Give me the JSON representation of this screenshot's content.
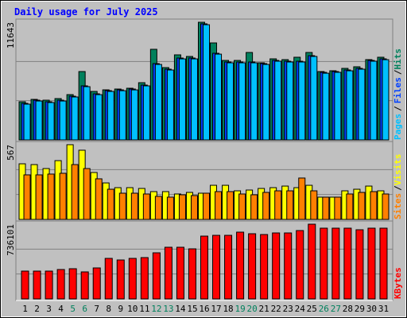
{
  "title": "Daily usage for July 2025",
  "categories": [
    "1",
    "2",
    "3",
    "4",
    "5",
    "6",
    "7",
    "8",
    "9",
    "10",
    "11",
    "12",
    "13",
    "14",
    "15",
    "16",
    "17",
    "18",
    "19",
    "20",
    "21",
    "22",
    "23",
    "24",
    "25",
    "26",
    "27",
    "28",
    "29",
    "30",
    "31"
  ],
  "category_colors": [
    "#000000",
    "#000000",
    "#000000",
    "#000000",
    "#00805c",
    "#00805c",
    "#000000",
    "#000000",
    "#000000",
    "#000000",
    "#000000",
    "#00805c",
    "#00805c",
    "#000000",
    "#000000",
    "#000000",
    "#000000",
    "#000000",
    "#00805c",
    "#00805c",
    "#000000",
    "#000000",
    "#000000",
    "#000000",
    "#000000",
    "#00805c",
    "#00805c",
    "#000000",
    "#000000",
    "#000000",
    "#000000"
  ],
  "chart_data": [
    {
      "type": "bar",
      "separator": "/",
      "ylim": [
        0,
        11643
      ],
      "yticks": [
        11643
      ],
      "series": [
        {
          "name": "Hits",
          "color": "#00805c",
          "values": [
            3776,
            4012,
            3933,
            4091,
            4484,
            6766,
            4799,
            4956,
            5035,
            5114,
            5664,
            8968,
            7159,
            8418,
            8260,
            11643,
            9598,
            7867,
            7867,
            8654,
            7631,
            8024,
            7946,
            8182,
            8654,
            6766,
            6844,
            7080,
            7238,
            7946,
            8182
          ]
        },
        {
          "name": "Files",
          "color": "#0040ff",
          "values": [
            3619,
            3933,
            3776,
            3933,
            4327,
            5350,
            4563,
            4878,
            4956,
            5035,
            5428,
            7552,
            7002,
            8103,
            8103,
            11486,
            8575,
            7710,
            7710,
            7710,
            7552,
            7867,
            7788,
            7788,
            8339,
            6687,
            6766,
            6923,
            7080,
            7867,
            8024
          ]
        },
        {
          "name": "Pages",
          "color": "#00c0ff",
          "values": [
            3540,
            3850,
            3700,
            3850,
            4250,
            5270,
            4480,
            4800,
            4870,
            4950,
            5350,
            7470,
            6920,
            8020,
            8020,
            11400,
            8490,
            7630,
            7630,
            7630,
            7470,
            7790,
            7710,
            7710,
            8260,
            6600,
            6690,
            6840,
            7000,
            7790,
            7940
          ]
        }
      ]
    },
    {
      "type": "bar",
      "separator": "/",
      "ylim": [
        0,
        567
      ],
      "yticks": [
        567
      ],
      "series": [
        {
          "name": "Visits",
          "color": "#ffff00",
          "values": [
            422,
            416,
            386,
            446,
            567,
            525,
            356,
            277,
            241,
            241,
            235,
            211,
            211,
            193,
            205,
            199,
            259,
            259,
            217,
            223,
            235,
            241,
            253,
            241,
            259,
            169,
            169,
            217,
            229,
            253,
            217
          ]
        },
        {
          "name": "Sites",
          "color": "#ff8000",
          "values": [
            338,
            338,
            344,
            350,
            416,
            386,
            308,
            229,
            199,
            199,
            193,
            175,
            169,
            187,
            181,
            199,
            211,
            211,
            193,
            187,
            205,
            217,
            217,
            314,
            217,
            169,
            169,
            193,
            205,
            211,
            193
          ]
        }
      ]
    },
    {
      "type": "bar",
      "ylim": [
        0,
        736101
      ],
      "yticks": [
        736101
      ],
      "series": [
        {
          "name": "KBytes",
          "color": "#ff0000",
          "values": [
            274085,
            274085,
            274085,
            289747,
            297578,
            266254,
            305409,
            399381,
            383719,
            399381,
            407212,
            454198,
            509015,
            509015,
            493353,
            618649,
            626480,
            626480,
            657804,
            642142,
            634311,
            649973,
            649973,
            673466,
            736101,
            696959,
            696959,
            696959,
            681297,
            696959,
            696959
          ]
        }
      ]
    }
  ]
}
